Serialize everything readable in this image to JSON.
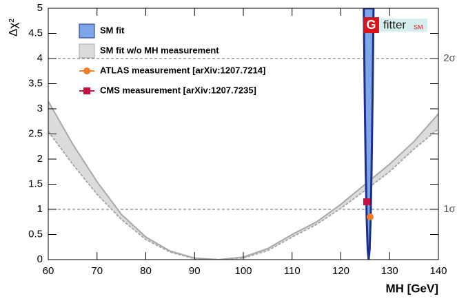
{
  "chart_data": {
    "type": "line",
    "y_label": "Δχ²",
    "x_label": "MH [GeV]",
    "xlim": [
      60,
      140
    ],
    "ylim": [
      0,
      5
    ],
    "xticks": [
      60,
      70,
      80,
      90,
      100,
      110,
      120,
      130,
      140
    ],
    "yticks": [
      0,
      0.5,
      1,
      1.5,
      2,
      2.5,
      3,
      3.5,
      4,
      4.5,
      5
    ],
    "hlines": [
      {
        "value": 1,
        "label": "1σ"
      },
      {
        "value": 4,
        "label": "2σ"
      }
    ],
    "legend": "upper left",
    "series": [
      {
        "name": "SM fit",
        "color": "#1c2f8c",
        "fill": "#7fa6e8",
        "x": [
          124.7,
          124.9,
          125.1,
          125.3,
          125.5,
          125.7,
          125.9,
          126.1,
          126.3,
          126.5,
          126.7
        ],
        "values": [
          5,
          3.2,
          1.8,
          0.8,
          0.2,
          0,
          0.2,
          0.8,
          1.8,
          3.2,
          5
        ]
      },
      {
        "name": "SM fit w/o MH measurement",
        "color": "#a8a8a8",
        "fill": "#dcdcdc",
        "x": [
          60,
          65,
          70,
          75,
          80,
          85,
          90,
          95,
          100,
          105,
          110,
          115,
          120,
          125,
          130,
          135,
          140
        ],
        "upper": [
          3.15,
          2.3,
          1.55,
          0.9,
          0.45,
          0.17,
          0.03,
          0,
          0.05,
          0.22,
          0.5,
          0.75,
          1.1,
          1.5,
          1.9,
          2.35,
          2.9
        ],
        "lower": [
          2.55,
          1.9,
          1.3,
          0.8,
          0.4,
          0.15,
          0.02,
          0,
          0.03,
          0.18,
          0.45,
          0.7,
          1.02,
          1.38,
          1.75,
          2.2,
          2.6
        ]
      },
      {
        "name": "ATLAS measurement [arXiv:1207.7214]",
        "color": "#f07e26",
        "marker": "circle",
        "x": [
          126.0
        ],
        "values": [
          0.85
        ]
      },
      {
        "name": "CMS measurement [arXiv:1207.7235]",
        "color": "#c8103e",
        "marker": "square",
        "x": [
          125.3
        ],
        "values": [
          1.15
        ]
      }
    ]
  },
  "logo": {
    "mark": "G",
    "text": "fitter",
    "tag": "SM"
  }
}
